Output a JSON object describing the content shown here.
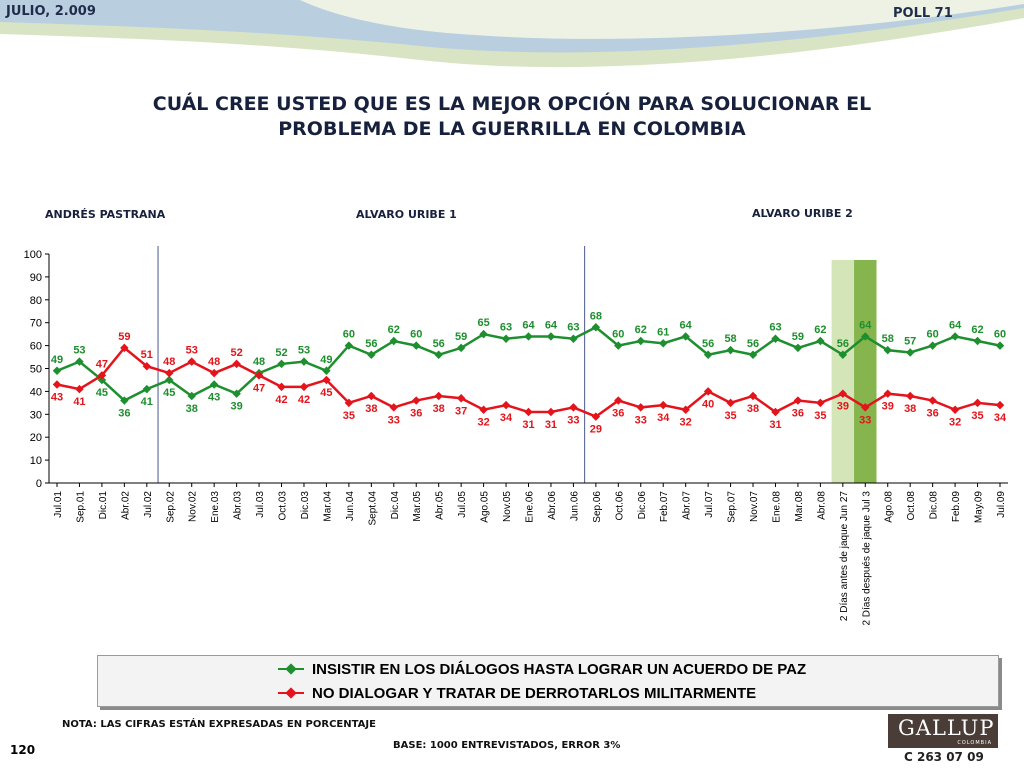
{
  "header": {
    "date": "JULIO, 2.009",
    "poll": "POLL 71",
    "title_line1": "CUÁL CREE USTED QUE ES LA MEJOR OPCIÓN PARA SOLUCIONAR EL",
    "title_line2": "PROBLEMA DE LA GUERRILLA EN COLOMBIA"
  },
  "periods": [
    "ANDRÉS  PASTRANA",
    "ALVARO URIBE 1",
    "ALVARO URIBE 2"
  ],
  "footer": {
    "note": "NOTA: LAS CIFRAS ESTÁN EXPRESADAS EN PORCENTAJE",
    "base": "BASE: 1000 ENTREVISTADOS, ERROR 3%",
    "page": "120",
    "code": "C 263 07 09",
    "logo": "GALLUP",
    "logo_sub": "COLOMBIA"
  },
  "colors": {
    "series1": "#1e8f2e",
    "series2": "#e3141b",
    "highlight_light": "#d4e5b8",
    "highlight_dark": "#86b54e",
    "divider": "#4a5a8a"
  },
  "chart_data": {
    "type": "line",
    "ylim": [
      0,
      100
    ],
    "yticks": [
      0,
      10,
      20,
      30,
      40,
      50,
      60,
      70,
      80,
      90,
      100
    ],
    "categories": [
      "Jul.01",
      "Sep.01",
      "Dic.01",
      "Abr.02",
      "Jul.02",
      "Sep.02",
      "Nov.02",
      "Ene.03",
      "Abr.03",
      "Jul.03",
      "Oct.03",
      "Dic.03",
      "Mar.04",
      "Jun.04",
      "Sept.04",
      "Dic.04",
      "Mar.05",
      "Abr.05",
      "Jul.05",
      "Ago.05",
      "Nov.05",
      "Ene.06",
      "Abr.06",
      "Jun.06",
      "Sep.06",
      "Oct.06",
      "Dic.06",
      "Feb.07",
      "Abr.07",
      "Jul.07",
      "Sep.07",
      "Nov.07",
      "Ene.08",
      "Mar.08",
      "Abr.08",
      "2 Días antes de jaque Jun 27",
      "2 Días después de jaque Jul 3",
      "Ago.08",
      "Oct.08",
      "Dic.08",
      "Feb.09",
      "May.09",
      "Jul.09"
    ],
    "series": [
      {
        "name": "INSISTIR EN LOS DIÁLOGOS HASTA LOGRAR UN ACUERDO DE PAZ",
        "values": [
          49,
          53,
          45,
          36,
          41,
          45,
          38,
          43,
          39,
          48,
          52,
          53,
          49,
          60,
          56,
          62,
          60,
          56,
          59,
          65,
          63,
          64,
          64,
          63,
          68,
          60,
          62,
          61,
          64,
          56,
          58,
          56,
          63,
          59,
          62,
          56,
          64,
          58,
          57,
          60,
          64,
          62,
          60
        ]
      },
      {
        "name": "NO DIALOGAR Y TRATAR DE DERROTARLOS MILITARMENTE",
        "values": [
          43,
          41,
          47,
          59,
          51,
          48,
          53,
          48,
          52,
          47,
          42,
          42,
          45,
          35,
          38,
          33,
          36,
          38,
          37,
          32,
          34,
          31,
          31,
          33,
          29,
          36,
          33,
          34,
          32,
          40,
          35,
          38,
          31,
          36,
          35,
          39,
          33,
          39,
          38,
          36,
          32,
          35,
          34
        ]
      }
    ],
    "period_dividers_after": [
      "Jul.02",
      "Jun.06"
    ],
    "highlighted_categories": [
      "2 Días antes de jaque Jun 27",
      "2 Días después de jaque Jul 3"
    ]
  }
}
